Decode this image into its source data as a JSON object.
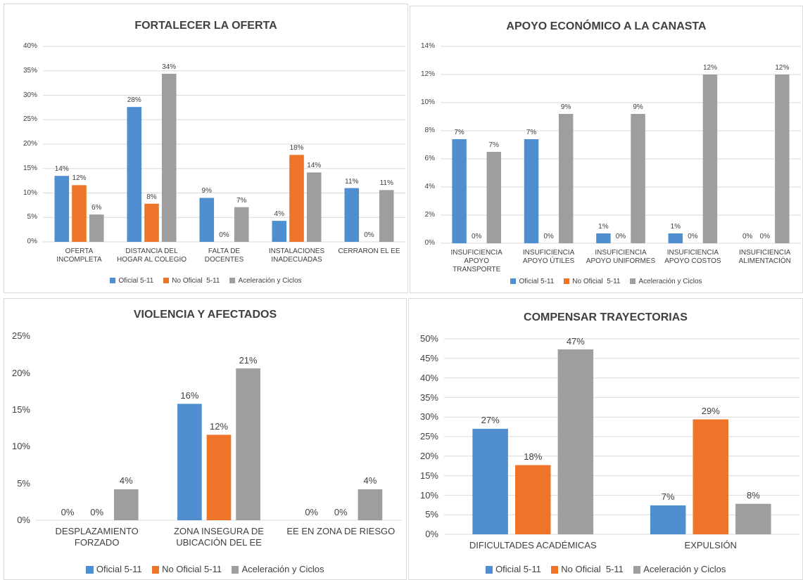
{
  "chart_data": [
    {
      "type": "bar",
      "title": "FORTALECER LA OFERTA",
      "categories": [
        "OFERTA\nINCOMPLETA",
        "DISTANCIA DEL\nHOGAR AL COLEGIO",
        "FALTA DE DOCENTES",
        "INSTALACIONES\nINADECUADAS",
        "CERRARON EL EE"
      ],
      "series": [
        {
          "name": "Oficial 5-11",
          "color": "#4f8fd0",
          "values": [
            13.5,
            27.6,
            9.0,
            4.3,
            11.0
          ],
          "value_labels": [
            "14%",
            "28%",
            "9%",
            "4%",
            "11%"
          ]
        },
        {
          "name": "No Oficial  5-11",
          "color": "#ed7428",
          "values": [
            11.6,
            7.8,
            0,
            17.8,
            0
          ],
          "value_labels": [
            "12%",
            "8%",
            "0%",
            "18%",
            "0%"
          ]
        },
        {
          "name": "Aceleración y Ciclos",
          "color": "#9e9e9e",
          "values": [
            5.6,
            34.4,
            7.1,
            14.2,
            10.6
          ],
          "value_labels": [
            "6%",
            "34%",
            "7%",
            "14%",
            "11%"
          ]
        }
      ],
      "ylim": [
        0,
        40
      ],
      "yticks": [
        {
          "value": 0,
          "label": "0%"
        },
        {
          "value": 5,
          "label": "5%"
        },
        {
          "value": 10,
          "label": "10%"
        },
        {
          "value": 15,
          "label": "15%"
        },
        {
          "value": 20,
          "label": "20%"
        },
        {
          "value": 25,
          "label": "25%"
        },
        {
          "value": 30,
          "label": "30%"
        },
        {
          "value": 35,
          "label": "35%"
        },
        {
          "value": 40,
          "label": "40%"
        }
      ],
      "grid": true,
      "legend": "bottom"
    },
    {
      "type": "bar",
      "title": "APOYO ECONÓMICO A LA CANASTA",
      "categories": [
        "INSUFICIENCIA\nAPOYO TRANSPORTE",
        "INSUFICIENCIA\nAPOYO  ÚTILES",
        "INSUFICIENCIA\nAPOYO UNIFORMES",
        "INSUFICIENCIA\nAPOYO COSTOS",
        "INSUFICIENCIA\nALIMENTACIÓN"
      ],
      "series": [
        {
          "name": "Oficial 5-11",
          "color": "#4f8fd0",
          "values": [
            7.4,
            7.4,
            0.7,
            0.7,
            0
          ],
          "value_labels": [
            "7%",
            "7%",
            "1%",
            "1%",
            "0%"
          ]
        },
        {
          "name": "No Oficial  5-11",
          "color": "#ed7428",
          "values": [
            0,
            0,
            0,
            0,
            0
          ],
          "value_labels": [
            "0%",
            "0%",
            "0%",
            "0%",
            "0%"
          ]
        },
        {
          "name": "Aceleración y Ciclos",
          "color": "#9e9e9e",
          "values": [
            6.5,
            9.2,
            9.2,
            12.0,
            12.0
          ],
          "value_labels": [
            "7%",
            "9%",
            "9%",
            "12%",
            "12%"
          ]
        }
      ],
      "ylim": [
        0,
        14
      ],
      "yticks": [
        {
          "value": 0,
          "label": "0%"
        },
        {
          "value": 2,
          "label": "2%"
        },
        {
          "value": 4,
          "label": "4%"
        },
        {
          "value": 6,
          "label": "6%"
        },
        {
          "value": 8,
          "label": "8%"
        },
        {
          "value": 10,
          "label": "10%"
        },
        {
          "value": 12,
          "label": "12%"
        },
        {
          "value": 14,
          "label": "14%"
        }
      ],
      "grid": true,
      "legend": "bottom"
    },
    {
      "type": "bar",
      "title": "VIOLENCIA Y AFECTADOS",
      "categories": [
        "DESPLAZAMIENTO\nFORZADO",
        "ZONA INSEGURA DE\nUBICACIÓN DEL EE",
        "EE EN ZONA DE RIESGO"
      ],
      "series": [
        {
          "name": "Oficial 5-11",
          "color": "#4f8fd0",
          "values": [
            0,
            15.8,
            0
          ],
          "value_labels": [
            "0%",
            "16%",
            "0%"
          ]
        },
        {
          "name": "No Oficial 5-11",
          "color": "#ed7428",
          "values": [
            0,
            11.6,
            0
          ],
          "value_labels": [
            "0%",
            "12%",
            "0%"
          ]
        },
        {
          "name": "Aceleración y Ciclos",
          "color": "#9e9e9e",
          "values": [
            4.2,
            20.6,
            4.2
          ],
          "value_labels": [
            "4%",
            "21%",
            "4%"
          ]
        }
      ],
      "ylim": [
        0,
        25
      ],
      "yticks": [
        {
          "value": 0,
          "label": "0%"
        },
        {
          "value": 5,
          "label": "5%"
        },
        {
          "value": 10,
          "label": "10%"
        },
        {
          "value": 15,
          "label": "15%"
        },
        {
          "value": 20,
          "label": "20%"
        },
        {
          "value": 25,
          "label": "25%"
        }
      ],
      "grid": false,
      "legend": "bottom"
    },
    {
      "type": "bar",
      "title": "COMPENSAR TRAYECTORIAS",
      "categories": [
        "DIFICULTADES ACADÉMICAS",
        "EXPULSIÓN"
      ],
      "series": [
        {
          "name": "Oficial 5-11",
          "color": "#4f8fd0",
          "values": [
            27.0,
            7.4
          ],
          "value_labels": [
            "27%",
            "7%"
          ]
        },
        {
          "name": "No Oficial  5-11",
          "color": "#ed7428",
          "values": [
            17.7,
            29.4
          ],
          "value_labels": [
            "18%",
            "29%"
          ]
        },
        {
          "name": "Aceleración y Ciclos",
          "color": "#9e9e9e",
          "values": [
            47.3,
            7.8
          ],
          "value_labels": [
            "47%",
            "8%"
          ]
        }
      ],
      "ylim": [
        0,
        50
      ],
      "yticks": [
        {
          "value": 0,
          "label": "0%"
        },
        {
          "value": 5,
          "label": "5%"
        },
        {
          "value": 10,
          "label": "10%"
        },
        {
          "value": 15,
          "label": "15%"
        },
        {
          "value": 20,
          "label": "20%"
        },
        {
          "value": 25,
          "label": "25%"
        },
        {
          "value": 30,
          "label": "30%"
        },
        {
          "value": 35,
          "label": "35%"
        },
        {
          "value": 40,
          "label": "40%"
        },
        {
          "value": 45,
          "label": "45%"
        },
        {
          "value": 50,
          "label": "50%"
        }
      ],
      "grid": true,
      "legend": "bottom"
    }
  ]
}
